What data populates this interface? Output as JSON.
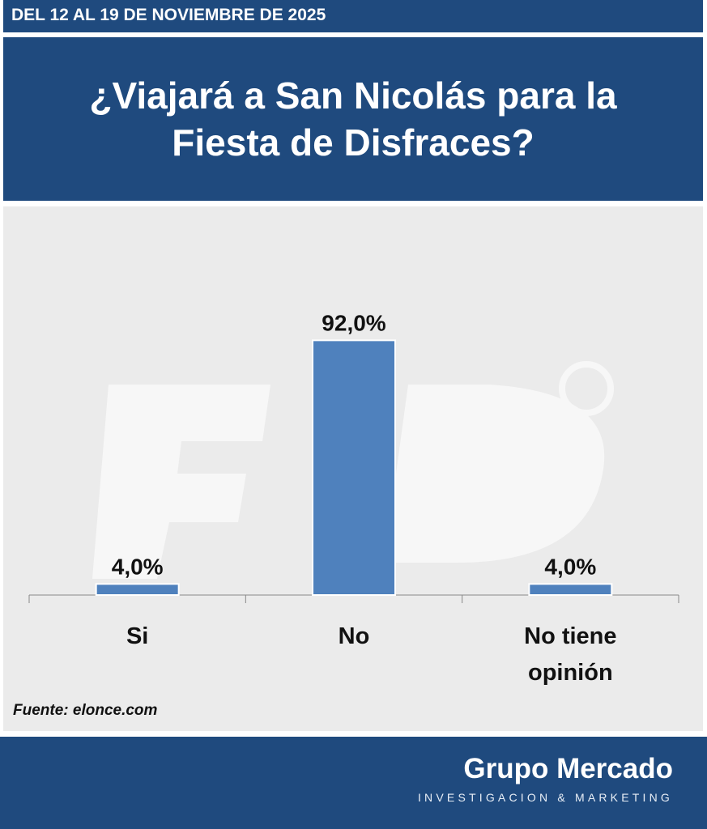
{
  "header": {
    "date_range": "DEL 12 AL 19 DE NOVIEMBRE DE 2025"
  },
  "title": "¿Viajará a San Nicolás para la Fiesta de Disfraces?",
  "source": "Fuente: elonce.com",
  "footer": {
    "brand": "Grupo Mercado",
    "tagline": "INVESTIGACION & MARKETING"
  },
  "colors": {
    "header_bg": "#1f4a7e",
    "bar": "#4f81bd"
  },
  "chart_data": {
    "type": "bar",
    "categories": [
      "Si",
      "No",
      "No tiene opinión"
    ],
    "values": [
      4.0,
      92.0,
      4.0
    ],
    "data_labels": [
      "4,0%",
      "92,0%",
      "4,0%"
    ],
    "unit": "%",
    "ylim": [
      0,
      100
    ],
    "grid": false,
    "legend": "none"
  }
}
